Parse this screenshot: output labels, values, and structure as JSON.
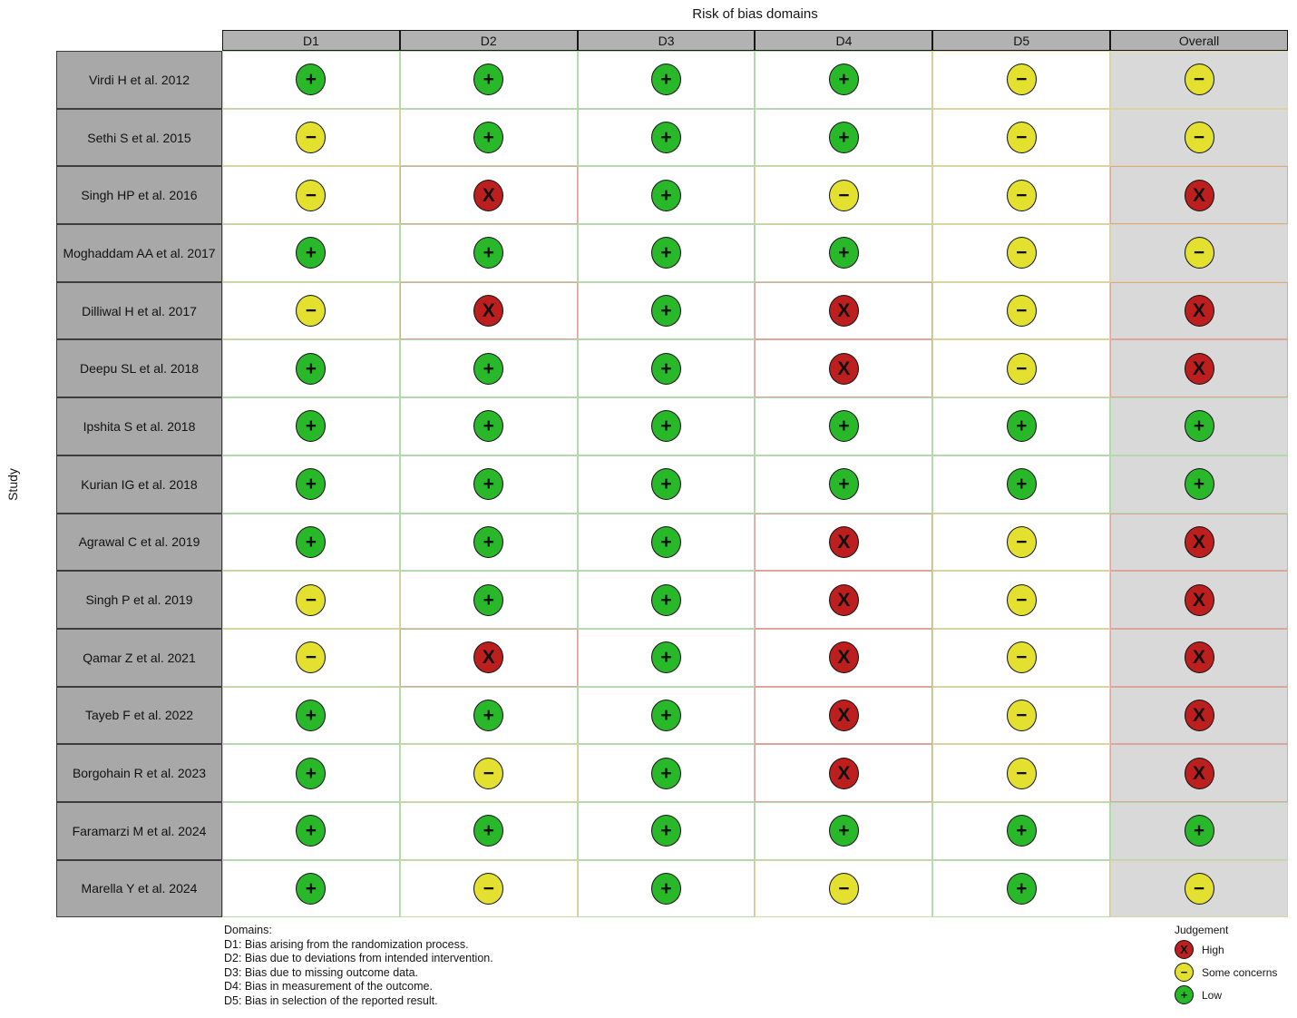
{
  "figure": {
    "title": "Risk of bias domains",
    "y_axis_label": "Study"
  },
  "table": {
    "columns": [
      "D1",
      "D2",
      "D3",
      "D4",
      "D5",
      "Overall"
    ],
    "rows": [
      {
        "study": "Virdi H et al. 2012",
        "judgements": [
          "low",
          "low",
          "low",
          "low",
          "some",
          "some"
        ]
      },
      {
        "study": "Sethi S et al. 2015",
        "judgements": [
          "some",
          "low",
          "low",
          "low",
          "some",
          "some"
        ]
      },
      {
        "study": "Singh HP et al. 2016",
        "judgements": [
          "some",
          "high",
          "low",
          "some",
          "some",
          "high"
        ]
      },
      {
        "study": "Moghaddam AA et al. 2017",
        "judgements": [
          "low",
          "low",
          "low",
          "low",
          "some",
          "some"
        ]
      },
      {
        "study": "Dilliwal H et al. 2017",
        "judgements": [
          "some",
          "high",
          "low",
          "high",
          "some",
          "high"
        ]
      },
      {
        "study": "Deepu SL et al. 2018",
        "judgements": [
          "low",
          "low",
          "low",
          "high",
          "some",
          "high"
        ]
      },
      {
        "study": "Ipshita S et al. 2018",
        "judgements": [
          "low",
          "low",
          "low",
          "low",
          "low",
          "low"
        ]
      },
      {
        "study": "Kurian IG et al. 2018",
        "judgements": [
          "low",
          "low",
          "low",
          "low",
          "low",
          "low"
        ]
      },
      {
        "study": "Agrawal C et al. 2019",
        "judgements": [
          "low",
          "low",
          "low",
          "high",
          "some",
          "high"
        ]
      },
      {
        "study": "Singh P et al. 2019",
        "judgements": [
          "some",
          "low",
          "low",
          "high",
          "some",
          "high"
        ]
      },
      {
        "study": "Qamar Z et al. 2021",
        "judgements": [
          "some",
          "high",
          "low",
          "high",
          "some",
          "high"
        ]
      },
      {
        "study": "Tayeb F et al. 2022",
        "judgements": [
          "low",
          "low",
          "low",
          "high",
          "some",
          "high"
        ]
      },
      {
        "study": "Borgohain R et al. 2023",
        "judgements": [
          "low",
          "some",
          "low",
          "high",
          "some",
          "high"
        ]
      },
      {
        "study": "Faramarzi M et al. 2024",
        "judgements": [
          "low",
          "low",
          "low",
          "low",
          "low",
          "low"
        ]
      },
      {
        "study": "Marella Y et al. 2024",
        "judgements": [
          "low",
          "some",
          "low",
          "some",
          "low",
          "some"
        ]
      }
    ]
  },
  "judgement_style": {
    "low": {
      "label": "Low",
      "symbol": "+",
      "color": "#29b829",
      "cell_border": "#b5d9ae"
    },
    "some": {
      "label": "Some concerns",
      "symbol": "−",
      "color": "#e3e02f",
      "cell_border": "#d9d4a0"
    },
    "high": {
      "label": "High",
      "symbol": "X",
      "color": "#bd1e1e",
      "cell_border": "#d9a79e"
    }
  },
  "domains_legend": {
    "heading": "Domains:",
    "items": [
      "D1: Bias arising from the randomization process.",
      "D2: Bias due to deviations from intended intervention.",
      "D3: Bias due to missing outcome data.",
      "D4: Bias in measurement of the outcome.",
      "D5: Bias in selection of the reported result."
    ]
  },
  "judgement_legend": {
    "heading": "Judgement",
    "items": [
      {
        "key": "high",
        "label": "High"
      },
      {
        "key": "some",
        "label": "Some concerns"
      },
      {
        "key": "low",
        "label": "Low"
      }
    ]
  },
  "colors": {
    "header_bg": "#b2b2b2",
    "study_cell_bg": "#a8a8a8",
    "overall_column_bg": "#d9d9d9",
    "background": "#ffffff"
  },
  "chart_data": {
    "type": "heatmap",
    "title": "Risk of bias domains",
    "ylabel": "Study",
    "x_categories": [
      "D1",
      "D2",
      "D3",
      "D4",
      "D5",
      "Overall"
    ],
    "y_categories": [
      "Virdi H et al. 2012",
      "Sethi S et al. 2015",
      "Singh HP et al. 2016",
      "Moghaddam AA et al. 2017",
      "Dilliwal H et al. 2017",
      "Deepu SL et al. 2018",
      "Ipshita S et al. 2018",
      "Kurian IG et al. 2018",
      "Agrawal C et al. 2019",
      "Singh P et al. 2019",
      "Qamar Z et al. 2021",
      "Tayeb F et al. 2022",
      "Borgohain R et al. 2023",
      "Faramarzi M et al. 2024",
      "Marella Y et al. 2024"
    ],
    "values": [
      [
        "low",
        "low",
        "low",
        "low",
        "some",
        "some"
      ],
      [
        "some",
        "low",
        "low",
        "low",
        "some",
        "some"
      ],
      [
        "some",
        "high",
        "low",
        "some",
        "some",
        "high"
      ],
      [
        "low",
        "low",
        "low",
        "low",
        "some",
        "some"
      ],
      [
        "some",
        "high",
        "low",
        "high",
        "some",
        "high"
      ],
      [
        "low",
        "low",
        "low",
        "high",
        "some",
        "high"
      ],
      [
        "low",
        "low",
        "low",
        "low",
        "low",
        "low"
      ],
      [
        "low",
        "low",
        "low",
        "low",
        "low",
        "low"
      ],
      [
        "low",
        "low",
        "low",
        "high",
        "some",
        "high"
      ],
      [
        "some",
        "low",
        "low",
        "high",
        "some",
        "high"
      ],
      [
        "some",
        "high",
        "low",
        "high",
        "some",
        "high"
      ],
      [
        "low",
        "low",
        "low",
        "high",
        "some",
        "high"
      ],
      [
        "low",
        "some",
        "low",
        "high",
        "some",
        "high"
      ],
      [
        "low",
        "low",
        "low",
        "low",
        "low",
        "low"
      ],
      [
        "low",
        "some",
        "low",
        "some",
        "low",
        "some"
      ]
    ],
    "value_labels": {
      "low": "Low",
      "some": "Some concerns",
      "high": "High"
    },
    "legend_entries": [
      "High",
      "Some concerns",
      "Low"
    ],
    "legend_position": "bottom-right",
    "grid": true
  }
}
